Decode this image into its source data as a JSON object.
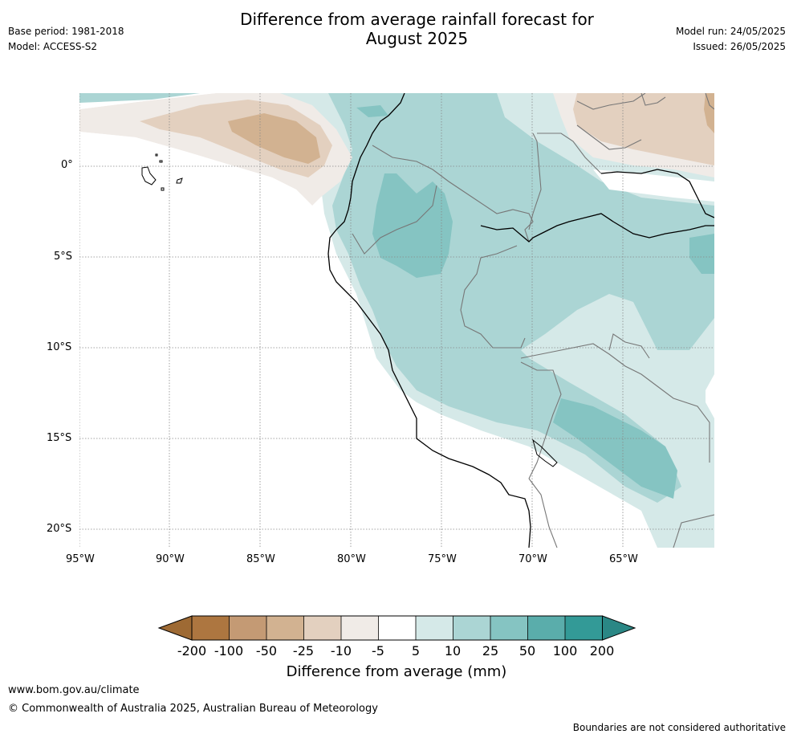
{
  "header": {
    "title_line1": "Difference from average rainfall forecast for",
    "title_line2": "August 2025",
    "base_period": "Base period: 1981-2018",
    "model": "Model: ACCESS-S2",
    "model_run": "Model run: 24/05/2025",
    "issued": "Issued: 26/05/2025"
  },
  "map": {
    "lat_labels": [
      "0°",
      "5°S",
      "10°S",
      "15°S",
      "20°S"
    ],
    "lon_labels": [
      "95°W",
      "90°W",
      "85°W",
      "80°W",
      "75°W",
      "70°W",
      "65°W"
    ],
    "colors": {
      "dry_strong": "#9e6a34",
      "dry_100": "#ad7640",
      "dry_50": "#c49a74",
      "dry_25": "#d2b291",
      "dry_10": "#e3d0bf",
      "dry_5": "#f0ebe7",
      "neutral": "#ffffff",
      "wet_5": "#d5e9e8",
      "wet_10": "#abd5d4",
      "wet_25": "#85c4c2",
      "wet_50": "#5aadab",
      "wet_100": "#339a97",
      "wet_strong": "#2a8785"
    }
  },
  "colorbar": {
    "labels": [
      "-200",
      "-100",
      "-50",
      "-25",
      "-10",
      "-5",
      "5",
      "10",
      "25",
      "50",
      "100",
      "200"
    ],
    "title": "Difference from average (mm)"
  },
  "footer": {
    "website": "www.bom.gov.au/climate",
    "copyright": "© Commonwealth of Australia 2025, Australian Bureau of Meteorology",
    "disclaimer": "Boundaries are not considered authoritative"
  }
}
